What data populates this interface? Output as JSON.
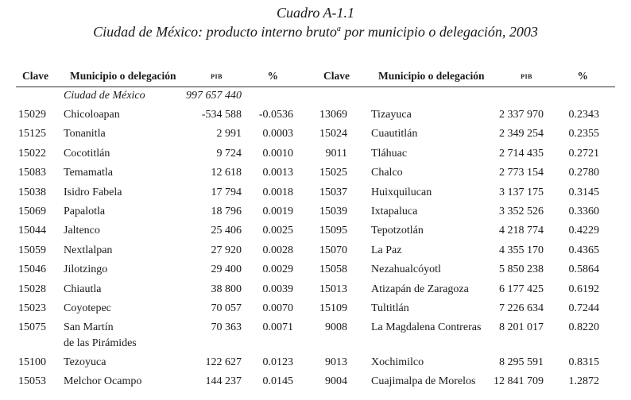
{
  "title": "Cuadro A-1.1",
  "subtitle_pre": "Ciudad de México: producto interno bruto",
  "subtitle_sup": "a",
  "subtitle_post": " por municipio o delegación, 2003",
  "headers": {
    "clave": "Clave",
    "municipio": "Municipio o delegación",
    "pib": "pib",
    "pct": "%"
  },
  "total": {
    "name": "Ciudad de México",
    "pib": "997 657 440"
  },
  "left": [
    {
      "clave": "15029",
      "name": "Chicoloapan",
      "pib": "-534 588",
      "pct": "-0.0536"
    },
    {
      "clave": "15125",
      "name": "Tonanitla",
      "pib": "2 991",
      "pct": "0.0003"
    },
    {
      "clave": "15022",
      "name": "Cocotitlán",
      "pib": "9 724",
      "pct": "0.0010"
    },
    {
      "clave": "15083",
      "name": "Temamatla",
      "pib": "12 618",
      "pct": "0.0013"
    },
    {
      "clave": "15038",
      "name": "Isidro Fabela",
      "pib": "17 794",
      "pct": "0.0018"
    },
    {
      "clave": "15069",
      "name": "Papalotla",
      "pib": "18 796",
      "pct": "0.0019"
    },
    {
      "clave": "15044",
      "name": "Jaltenco",
      "pib": "25 406",
      "pct": "0.0025"
    },
    {
      "clave": "15059",
      "name": "Nextlalpan",
      "pib": "27 920",
      "pct": "0.0028"
    },
    {
      "clave": "15046",
      "name": "Jilotzingo",
      "pib": "29 400",
      "pct": "0.0029"
    },
    {
      "clave": "15028",
      "name": "Chiautla",
      "pib": "38 800",
      "pct": "0.0039"
    },
    {
      "clave": "15023",
      "name": "Coyotepec",
      "pib": "70 057",
      "pct": "0.0070"
    },
    {
      "clave": "15075",
      "name": "San Martín",
      "name2": "de las Pirámides",
      "pib": "70 363",
      "pct": "0.0071"
    },
    {
      "clave": "15100",
      "name": "Tezoyuca",
      "pib": "122 627",
      "pct": "0.0123"
    },
    {
      "clave": "15053",
      "name": "Melchor Ocampo",
      "pib": "144 237",
      "pct": "0.0145"
    }
  ],
  "right": [
    {
      "clave": "13069",
      "name": "Tizayuca",
      "pib": "2 337 970",
      "pct": "0.2343"
    },
    {
      "clave": "15024",
      "name": "Cuautitlán",
      "pib": "2 349 254",
      "pct": "0.2355"
    },
    {
      "clave": "9011",
      "name": "Tláhuac",
      "pib": "2 714 435",
      "pct": "0.2721"
    },
    {
      "clave": "15025",
      "name": "Chalco",
      "pib": "2 773 154",
      "pct": "0.2780"
    },
    {
      "clave": "15037",
      "name": "Huixquilucan",
      "pib": "3 137 175",
      "pct": "0.3145"
    },
    {
      "clave": "15039",
      "name": "Ixtapaluca",
      "pib": "3 352 526",
      "pct": "0.3360"
    },
    {
      "clave": "15095",
      "name": "Tepotzotlán",
      "pib": "4 218 774",
      "pct": "0.4229"
    },
    {
      "clave": "15070",
      "name": "La Paz",
      "pib": "4 355 170",
      "pct": "0.4365"
    },
    {
      "clave": "15058",
      "name": "Nezahualcóyotl",
      "pib": "5 850 238",
      "pct": "0.5864"
    },
    {
      "clave": "15013",
      "name": "Atizapán de Zaragoza",
      "pib": "6 177 425",
      "pct": "0.6192"
    },
    {
      "clave": "15109",
      "name": "Tultitlán",
      "pib": "7 226 634",
      "pct": "0.7244"
    },
    {
      "clave": "9008",
      "name": "La Magdalena Contreras",
      "pib": "8 201 017",
      "pct": "0.8220"
    },
    {
      "clave": "9013",
      "name": "Xochimilco",
      "pib": "8 295 591",
      "pct": "0.8315"
    },
    {
      "clave": "9004",
      "name": "Cuajimalpa de Morelos",
      "pib": "12 841 709",
      "pct": "1.2872"
    }
  ]
}
